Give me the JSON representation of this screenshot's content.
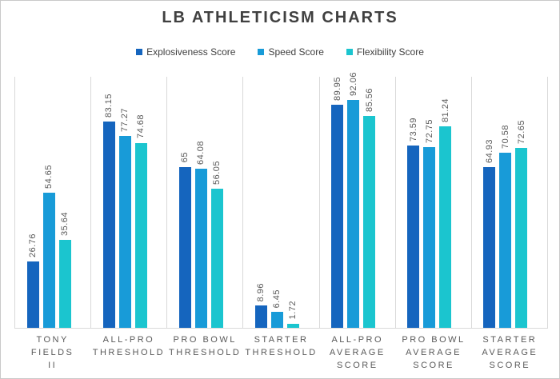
{
  "chart_data": {
    "type": "bar",
    "title": "LB ATHLETICISM CHARTS",
    "categories": [
      "TONY FIELDS II",
      "ALL-PRO THRESHOLD",
      "PRO BOWL THRESHOLD",
      "STARTER THRESHOLD",
      "ALL-PRO AVERAGE SCORE",
      "PRO BOWL AVERAGE SCORE",
      "STARTER AVERAGE SCORE"
    ],
    "category_display_lines": [
      [
        "TONY FIELDS",
        "II"
      ],
      [
        "ALL-PRO",
        "THRESHOLD"
      ],
      [
        "PRO BOWL",
        "THRESHOLD"
      ],
      [
        "STARTER",
        "THRESHOLD"
      ],
      [
        "ALL-PRO",
        "AVERAGE",
        "SCORE"
      ],
      [
        "PRO BOWL",
        "AVERAGE",
        "SCORE"
      ],
      [
        "STARTER",
        "AVERAGE",
        "SCORE"
      ]
    ],
    "series": [
      {
        "name": "Explosiveness Score",
        "color": "#1565BE",
        "values": [
          26.76,
          83.15,
          65,
          8.96,
          89.95,
          73.59,
          64.93
        ]
      },
      {
        "name": "Speed Score",
        "color": "#189BD8",
        "values": [
          54.65,
          77.27,
          64.08,
          6.45,
          92.06,
          72.75,
          70.58
        ]
      },
      {
        "name": "Flexibility Score",
        "color": "#1BC5CF",
        "values": [
          35.64,
          74.68,
          56.05,
          1.72,
          85.56,
          81.24,
          72.65
        ]
      }
    ],
    "ylim": [
      0,
      100
    ],
    "grid": "vertical category separator lines only",
    "legend_position": "top-center",
    "data_labels": "values rotated 90 degrees above each bar",
    "colors": {
      "title_text": "#404040",
      "label_text": "#595959",
      "gridline": "#d9d9d9",
      "frame_border": "#c9c9c9",
      "background": "#ffffff"
    }
  }
}
